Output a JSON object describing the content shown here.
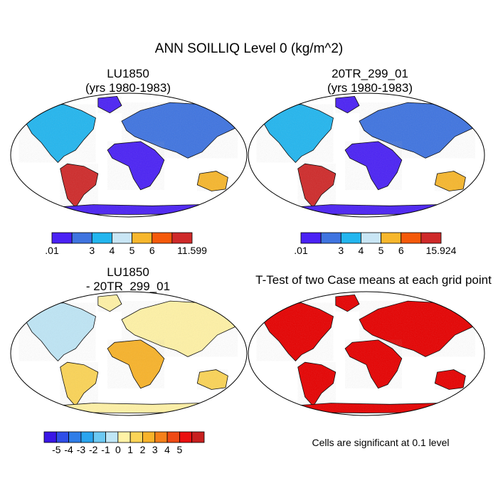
{
  "figure": {
    "title": "ANN SOILLIQ Level 0 (kg/m^2)"
  },
  "panels": [
    {
      "id": "case1",
      "title_line1": "LU1850",
      "title_line2": "(yrs 1980-1983)",
      "colorbar": {
        "colors": [
          "#4b22f5",
          "#3f74e0",
          "#23b6ef",
          "#c9e6f5",
          "#f7b72d",
          "#f55a0a",
          "#cf2a2a"
        ],
        "labels": [
          ".01",
          "3",
          "4",
          "5",
          "6",
          "11.599"
        ]
      }
    },
    {
      "id": "case2",
      "title_line1": "20TR_299_01",
      "title_line2": "(yrs 1980-1983)",
      "colorbar": {
        "colors": [
          "#4b22f5",
          "#3f74e0",
          "#23b6ef",
          "#c9e6f5",
          "#f7b72d",
          "#f55a0a",
          "#cf2a2a"
        ],
        "labels": [
          ".01",
          "3",
          "4",
          "5",
          "6",
          "15.924"
        ]
      }
    },
    {
      "id": "difference",
      "title_line1": "LU1850",
      "title_line2": "- 20TR_299_01",
      "colorbar": {
        "colors": [
          "#3a16e6",
          "#2f4ee8",
          "#2f7de8",
          "#2aa5ef",
          "#6cc9f3",
          "#bfe6f6",
          "#fff2a6",
          "#fbd457",
          "#f8b32a",
          "#f5801a",
          "#ef4a14",
          "#ea1010",
          "#c8201f"
        ],
        "labels": [
          "-5",
          "-4",
          "-3",
          "-2",
          "-1",
          "0",
          "1",
          "2",
          "3",
          "4",
          "5"
        ]
      }
    },
    {
      "id": "ttest",
      "title": "T-Test of two Case means at each grid point",
      "note": "Cells are significant at 0.1 level",
      "sig_color": "#e60000"
    }
  ]
}
